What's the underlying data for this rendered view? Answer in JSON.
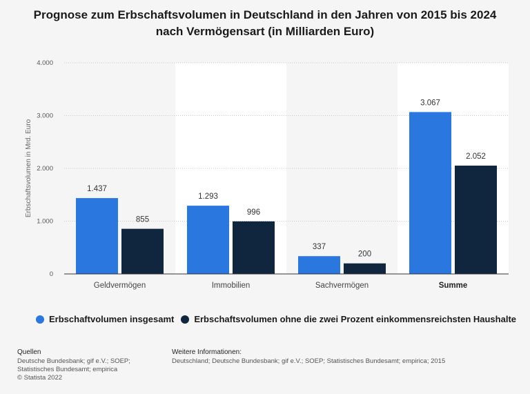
{
  "title": {
    "line1": "Prognose zum Erbschaftsvolumen in Deutschland in den Jahren von 2015 bis 2024",
    "line2": "nach Vermögensart (in Milliarden Euro)"
  },
  "chart_data": {
    "type": "bar",
    "title": "Prognose zum Erbschaftsvolumen in Deutschland in den Jahren von 2015 bis 2024 nach Vermögensart (in Milliarden Euro)",
    "xlabel": "",
    "ylabel": "Erbschaftsvolumen in Mrd. Euro",
    "ylim": [
      0,
      4000
    ],
    "yticks": [
      0,
      1000,
      2000,
      3000,
      4000
    ],
    "ytick_labels": [
      "0",
      "1.000",
      "2.000",
      "3.000",
      "4.000"
    ],
    "categories": [
      "Geldvermögen",
      "Immobilien",
      "Sachvermögen",
      "Summe"
    ],
    "bold_categories": [
      "Summe"
    ],
    "series": [
      {
        "name": "Erbschaftvolumen insgesamt",
        "color": "#2a77df",
        "values": [
          1437,
          1293,
          337,
          3067
        ],
        "labels": [
          "1.437",
          "1.293",
          "337",
          "3.067"
        ]
      },
      {
        "name": "Erbschaftsvolumen ohne die zwei Prozent einkommensreichsten Haushalte",
        "color": "#10263f",
        "values": [
          855,
          996,
          200,
          2052
        ],
        "labels": [
          "855",
          "996",
          "200",
          "2.052"
        ]
      }
    ],
    "legend_position": "bottom-left",
    "grid": true
  },
  "footer": {
    "sources_heading": "Quellen",
    "sources_lines": [
      "Deutsche Bundesbank; gif e.V.; SOEP;",
      "Statistisches Bundesamt; empirica",
      "© Statista 2022"
    ],
    "info_heading": "Weitere Informationen:",
    "info_text": "Deutschland; Deutsche Bundesbank; gif e.V.; SOEP; Statistisches Bundesamt; empirica; 2015"
  }
}
